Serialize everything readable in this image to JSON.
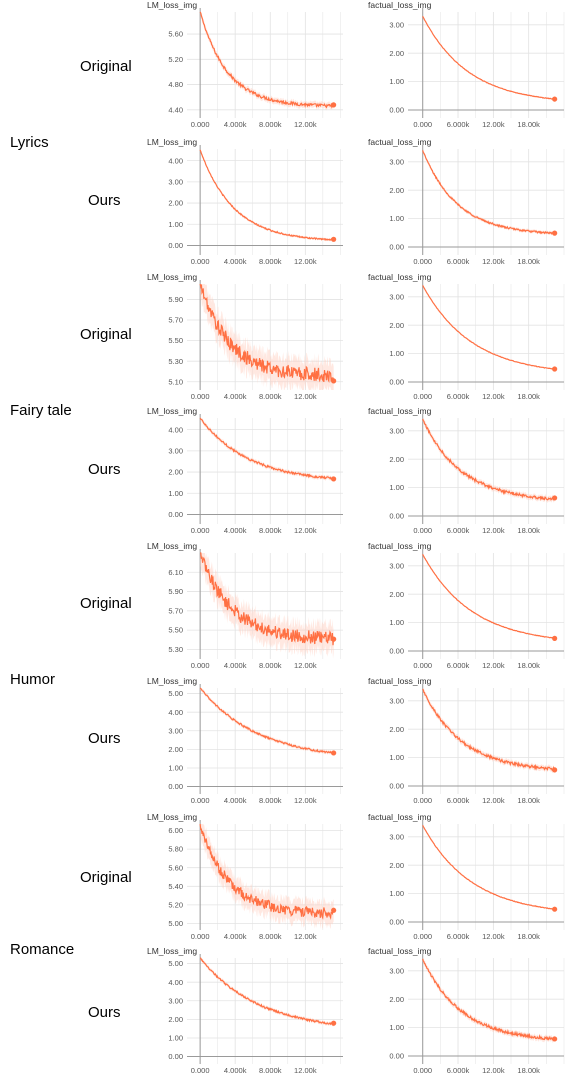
{
  "group_labels": [
    "Lyrics",
    "Fairy tale",
    "Humor",
    "Romance"
  ],
  "row_labels": [
    "Original",
    "Ours"
  ],
  "colors": {
    "line": "#ff7043",
    "band": "#ffccbc",
    "grid": "#e3e3e3",
    "axis": "#9a9a9a"
  },
  "chart_data": [
    {
      "type": "line",
      "title": "LM_loss_img",
      "group": "Lyrics",
      "row": "Original",
      "x_ticks": [
        "0.000",
        "4.000k",
        "8.000k",
        "12.00k"
      ],
      "xlim": [
        -1.5,
        16.3
      ],
      "y_ticks": [
        "5.60",
        "5.20",
        "4.80",
        "4.40"
      ],
      "ylim": [
        4.27,
        5.95
      ],
      "shape": {
        "start": 5.95,
        "end": 4.45,
        "k": 0.32,
        "noise": 0.025
      }
    },
    {
      "type": "line",
      "title": "factual_loss_img",
      "group": "Lyrics",
      "row": "Original",
      "x_ticks": [
        "0.000",
        "6.000k",
        "12.00k",
        "18.00k"
      ],
      "xlim": [
        -2.5,
        24
      ],
      "y_ticks": [
        "3.00",
        "2.00",
        "1.00",
        "0.00"
      ],
      "ylim": [
        -0.28,
        3.45
      ],
      "shape": {
        "start": 3.3,
        "end": 0.22,
        "k": 0.13,
        "noise": 0.01
      }
    },
    {
      "type": "line",
      "title": "LM_loss_img",
      "group": "Lyrics",
      "row": "Ours",
      "x_ticks": [
        "0.000",
        "4.000k",
        "8.000k",
        "12.00k"
      ],
      "xlim": [
        -1.5,
        16.3
      ],
      "y_ticks": [
        "4.00",
        "3.00",
        "2.00",
        "1.00",
        "0.00"
      ],
      "ylim": [
        -0.45,
        4.55
      ],
      "shape": {
        "start": 4.5,
        "end": 0.18,
        "k": 0.26,
        "noise": 0.03
      }
    },
    {
      "type": "line",
      "title": "factual_loss_img",
      "group": "Lyrics",
      "row": "Ours",
      "x_ticks": [
        "0.000",
        "6.000k",
        "12.00k",
        "18.00k"
      ],
      "xlim": [
        -2.5,
        24
      ],
      "y_ticks": [
        "3.00",
        "2.00",
        "1.00",
        "0.00"
      ],
      "ylim": [
        -0.28,
        3.45
      ],
      "shape": {
        "start": 3.4,
        "end": 0.42,
        "k": 0.17,
        "noise": 0.03
      }
    },
    {
      "type": "line",
      "title": "LM_loss_img",
      "group": "Fairy tale",
      "row": "Original",
      "x_ticks": [
        "0.000",
        "4.000k",
        "8.000k",
        "12.00k"
      ],
      "xlim": [
        -1.5,
        16.3
      ],
      "y_ticks": [
        "5.90",
        "5.70",
        "5.50",
        "5.30",
        "5.10"
      ],
      "ylim": [
        5.02,
        6.05
      ],
      "shape": {
        "start": 6.05,
        "end": 5.15,
        "k": 0.3,
        "noise": 0.07
      }
    },
    {
      "type": "line",
      "title": "factual_loss_img",
      "group": "Fairy tale",
      "row": "Original",
      "x_ticks": [
        "0.000",
        "6.000k",
        "12.00k",
        "18.00k"
      ],
      "xlim": [
        -2.5,
        24
      ],
      "y_ticks": [
        "3.00",
        "2.00",
        "1.00",
        "0.00"
      ],
      "ylim": [
        -0.28,
        3.45
      ],
      "shape": {
        "start": 3.4,
        "end": 0.24,
        "k": 0.12,
        "noise": 0.01
      }
    },
    {
      "type": "line",
      "title": "LM_loss_img",
      "group": "Fairy tale",
      "row": "Ours",
      "x_ticks": [
        "0.000",
        "4.000k",
        "8.000k",
        "12.00k"
      ],
      "xlim": [
        -1.5,
        16.3
      ],
      "y_ticks": [
        "4.00",
        "3.00",
        "2.00",
        "1.00",
        "0.00"
      ],
      "ylim": [
        -0.45,
        4.55
      ],
      "shape": {
        "start": 4.55,
        "end": 1.5,
        "k": 0.18,
        "noise": 0.05
      }
    },
    {
      "type": "line",
      "title": "factual_loss_img",
      "group": "Fairy tale",
      "row": "Ours",
      "x_ticks": [
        "0.000",
        "6.000k",
        "12.00k",
        "18.00k"
      ],
      "xlim": [
        -2.5,
        24
      ],
      "y_ticks": [
        "3.00",
        "2.00",
        "1.00",
        "0.00"
      ],
      "ylim": [
        -0.28,
        3.45
      ],
      "shape": {
        "start": 3.4,
        "end": 0.5,
        "k": 0.15,
        "noise": 0.05
      }
    },
    {
      "type": "line",
      "title": "LM_loss_img",
      "group": "Humor",
      "row": "Original",
      "x_ticks": [
        "0.000",
        "4.000k",
        "8.000k",
        "12.00k"
      ],
      "xlim": [
        -1.5,
        16.3
      ],
      "y_ticks": [
        "6.10",
        "5.90",
        "5.70",
        "5.50",
        "5.30"
      ],
      "ylim": [
        5.2,
        6.3
      ],
      "shape": {
        "start": 6.3,
        "end": 5.4,
        "k": 0.28,
        "noise": 0.07
      }
    },
    {
      "type": "line",
      "title": "factual_loss_img",
      "group": "Humor",
      "row": "Original",
      "x_ticks": [
        "0.000",
        "6.000k",
        "12.00k",
        "18.00k"
      ],
      "xlim": [
        -2.5,
        24
      ],
      "y_ticks": [
        "3.00",
        "2.00",
        "1.00",
        "0.00"
      ],
      "ylim": [
        -0.28,
        3.45
      ],
      "shape": {
        "start": 3.4,
        "end": 0.24,
        "k": 0.12,
        "noise": 0.01
      }
    },
    {
      "type": "line",
      "title": "LM_loss_img",
      "group": "Humor",
      "row": "Ours",
      "x_ticks": [
        "0.000",
        "4.000k",
        "8.000k",
        "12.00k"
      ],
      "xlim": [
        -1.5,
        16.3
      ],
      "y_ticks": [
        "5.00",
        "4.00",
        "3.00",
        "2.00",
        "1.00",
        "0.00"
      ],
      "ylim": [
        -0.4,
        5.3
      ],
      "shape": {
        "start": 5.3,
        "end": 1.4,
        "k": 0.15,
        "noise": 0.05
      }
    },
    {
      "type": "line",
      "title": "factual_loss_img",
      "group": "Humor",
      "row": "Ours",
      "x_ticks": [
        "0.000",
        "6.000k",
        "12.00k",
        "18.00k"
      ],
      "xlim": [
        -2.5,
        24
      ],
      "y_ticks": [
        "3.00",
        "2.00",
        "1.00",
        "0.00"
      ],
      "ylim": [
        -0.28,
        3.45
      ],
      "shape": {
        "start": 3.4,
        "end": 0.5,
        "k": 0.15,
        "noise": 0.05
      }
    },
    {
      "type": "line",
      "title": "LM_loss_img",
      "group": "Romance",
      "row": "Original",
      "x_ticks": [
        "0.000",
        "4.000k",
        "8.000k",
        "12.00k"
      ],
      "xlim": [
        -1.5,
        16.3
      ],
      "y_ticks": [
        "6.00",
        "5.80",
        "5.60",
        "5.40",
        "5.20",
        "5.00"
      ],
      "ylim": [
        4.93,
        6.07
      ],
      "shape": {
        "start": 6.05,
        "end": 5.1,
        "k": 0.3,
        "noise": 0.06
      }
    },
    {
      "type": "line",
      "title": "factual_loss_img",
      "group": "Romance",
      "row": "Original",
      "x_ticks": [
        "0.000",
        "6.000k",
        "12.00k",
        "18.00k"
      ],
      "xlim": [
        -2.5,
        24
      ],
      "y_ticks": [
        "3.00",
        "2.00",
        "1.00",
        "0.00"
      ],
      "ylim": [
        -0.28,
        3.45
      ],
      "shape": {
        "start": 3.4,
        "end": 0.24,
        "k": 0.12,
        "noise": 0.01
      }
    },
    {
      "type": "line",
      "title": "LM_loss_img",
      "group": "Romance",
      "row": "Ours",
      "x_ticks": [
        "0.000",
        "4.000k",
        "8.000k",
        "12.00k"
      ],
      "xlim": [
        -1.5,
        16.3
      ],
      "y_ticks": [
        "5.00",
        "4.00",
        "3.00",
        "2.00",
        "1.00",
        "0.00"
      ],
      "ylim": [
        -0.4,
        5.3
      ],
      "shape": {
        "start": 5.3,
        "end": 1.35,
        "k": 0.15,
        "noise": 0.05
      }
    },
    {
      "type": "line",
      "title": "factual_loss_img",
      "group": "Romance",
      "row": "Ours",
      "x_ticks": [
        "0.000",
        "6.000k",
        "12.00k",
        "18.00k"
      ],
      "xlim": [
        -2.5,
        24
      ],
      "y_ticks": [
        "3.00",
        "2.00",
        "1.00",
        "0.00"
      ],
      "ylim": [
        -0.28,
        3.45
      ],
      "shape": {
        "start": 3.4,
        "end": 0.5,
        "k": 0.15,
        "noise": 0.05
      }
    }
  ]
}
